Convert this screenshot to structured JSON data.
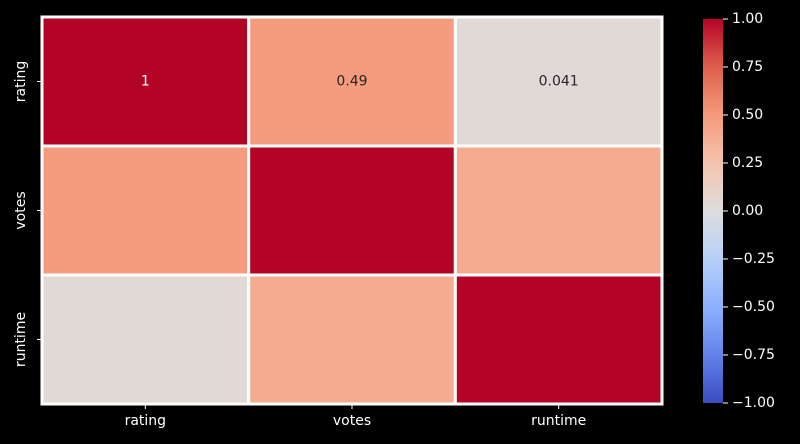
{
  "chart_data": {
    "type": "heatmap",
    "title": "",
    "xlabel": "",
    "ylabel": "",
    "x_categories": [
      "rating",
      "votes",
      "runtime"
    ],
    "y_categories": [
      "rating",
      "votes",
      "runtime"
    ],
    "values": [
      [
        1.0,
        0.49,
        0.041
      ],
      [
        0.49,
        1.0,
        0.4
      ],
      [
        0.041,
        0.4,
        1.0
      ]
    ],
    "annotations": [
      [
        "1",
        "0.49",
        "0.041"
      ],
      [
        "",
        "",
        ""
      ],
      [
        "",
        "",
        ""
      ]
    ],
    "vmin": -1.0,
    "vmax": 1.0,
    "colormap": "coolwarm",
    "colorbar": {
      "ticks": [
        1.0,
        0.75,
        0.5,
        0.25,
        0.0,
        -0.25,
        -0.5,
        -0.75,
        -1.0
      ],
      "tick_labels": [
        "1.00",
        "0.75",
        "0.50",
        "0.25",
        "0.00",
        "−0.25",
        "−0.50",
        "−0.75",
        "−1.00"
      ]
    },
    "background_color": "#000000",
    "cell_border_color": "#ffffff",
    "text_color": "#ffffff",
    "grid": false,
    "legend": "colorbar-right"
  }
}
